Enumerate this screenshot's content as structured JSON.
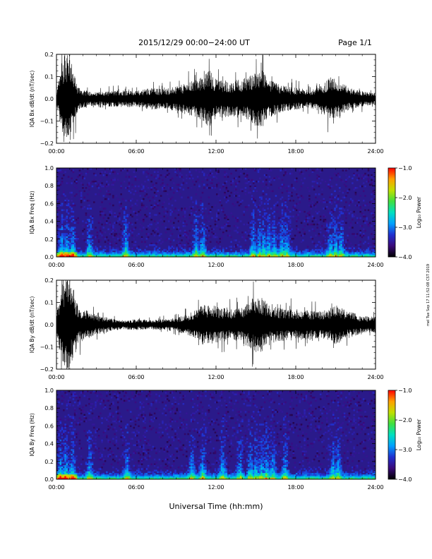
{
  "header": {
    "title": "2015/12/29  00:00−24:00 UT",
    "page": "Page 1/1"
  },
  "xaxis": {
    "title": "Universal Time (hh:mm)",
    "ticks": [
      "00:00",
      "06:00",
      "12:00",
      "18:00",
      "24:00"
    ],
    "range_hours": [
      0,
      24
    ]
  },
  "stamp": "mel Tue Sep 17 11:52:08 CST 2019",
  "colors": {
    "trace": "#000000",
    "spectrogram_background": "#2a1a8a",
    "colorbar": [
      "#000000",
      "#3a0a7a",
      "#2030d0",
      "#00a0ff",
      "#00e0c0",
      "#40e040",
      "#c0e000",
      "#ffa000",
      "#ff0000"
    ]
  },
  "chart_data": [
    {
      "type": "line",
      "ylabel": "IQA Bx dB/dt (nT/sec)",
      "ylim": [
        -0.2,
        0.2
      ],
      "yticks": [
        "0.2",
        "0.1",
        "0.0",
        "−0.1",
        "−0.2"
      ],
      "x": [
        0,
        0.3,
        0.6,
        1.0,
        1.3,
        1.6,
        2,
        3,
        4,
        5,
        6,
        7,
        8,
        9,
        10,
        11,
        11.5,
        12,
        13,
        14,
        15,
        15.5,
        16,
        17,
        18,
        19,
        20,
        20.5,
        21,
        22,
        23,
        24
      ],
      "amplitude": [
        0.03,
        0.12,
        0.22,
        0.2,
        0.12,
        0.06,
        0.04,
        0.03,
        0.035,
        0.04,
        0.035,
        0.05,
        0.045,
        0.055,
        0.075,
        0.1,
        0.13,
        0.09,
        0.08,
        0.09,
        0.12,
        0.13,
        0.085,
        0.06,
        0.05,
        0.04,
        0.06,
        0.1,
        0.09,
        0.05,
        0.035,
        0.025
      ]
    },
    {
      "type": "heatmap",
      "ylabel": "IQA Bx Freq (Hz)",
      "ylim": [
        0,
        1.0
      ],
      "yticks": [
        "1.0",
        "0.8",
        "0.6",
        "0.4",
        "0.2",
        "0.0"
      ],
      "colorbar": {
        "label": "Log₁₀ Power",
        "ticks": [
          "−1.0",
          "−2.0",
          "−3.0",
          "−4.0"
        ],
        "range": [
          -4.0,
          -1.0
        ]
      },
      "bursts_hours": [
        0.4,
        0.8,
        1.2,
        2.5,
        5.2,
        10.5,
        11.0,
        14.8,
        15.3,
        15.6,
        16.0,
        16.4,
        17.0,
        17.3,
        20.6,
        21.0,
        21.4
      ]
    },
    {
      "type": "line",
      "ylabel": "IQA By dB/dt (nT/sec)",
      "ylim": [
        -0.2,
        0.2
      ],
      "yticks": [
        "0.2",
        "0.1",
        "0.0",
        "−0.1",
        "−0.2"
      ],
      "x": [
        0,
        0.3,
        0.6,
        1.0,
        1.3,
        1.6,
        2,
        2.5,
        3,
        4,
        5,
        6,
        7,
        8,
        9,
        10,
        11,
        12,
        13,
        14,
        14.5,
        15,
        15.5,
        16,
        17,
        18,
        19,
        20,
        21,
        22,
        23,
        24
      ],
      "amplitude": [
        0.05,
        0.14,
        0.22,
        0.2,
        0.16,
        0.09,
        0.07,
        0.06,
        0.045,
        0.03,
        0.02,
        0.025,
        0.02,
        0.025,
        0.03,
        0.05,
        0.09,
        0.085,
        0.07,
        0.08,
        0.11,
        0.13,
        0.12,
        0.09,
        0.075,
        0.07,
        0.065,
        0.06,
        0.09,
        0.06,
        0.04,
        0.035
      ]
    },
    {
      "type": "heatmap",
      "ylabel": "IQA By Freq (Hz)",
      "ylim": [
        0,
        1.0
      ],
      "yticks": [
        "1.0",
        "0.8",
        "0.6",
        "0.4",
        "0.2",
        "0.0"
      ],
      "colorbar": {
        "label": "Log₁₀ Power",
        "ticks": [
          "−1.0",
          "−2.0",
          "−3.0",
          "−4.0"
        ],
        "range": [
          -4.0,
          -1.0
        ]
      },
      "bursts_hours": [
        0.3,
        0.7,
        1.2,
        2.5,
        5.3,
        10.2,
        11.0,
        12.5,
        13.8,
        14.6,
        15.0,
        15.4,
        15.8,
        16.3,
        17.2,
        20.8,
        21.2
      ]
    }
  ]
}
